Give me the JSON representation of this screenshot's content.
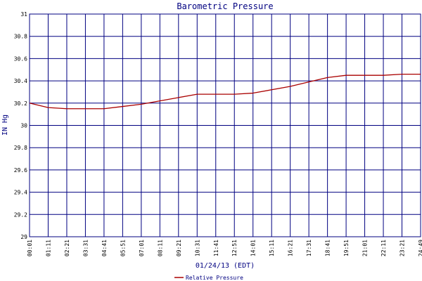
{
  "colors": {
    "grid": "#000080",
    "series": "#aa0000",
    "text": "#000080",
    "background": "#ffffff"
  },
  "chart_data": {
    "type": "line",
    "title": "Barometric Pressure",
    "xlabel": "01/24/13 (EDT)",
    "ylabel": "IN Hg",
    "ylim": [
      29,
      31
    ],
    "yticks": [
      29,
      29.2,
      29.4,
      29.6,
      29.8,
      30,
      30.2,
      30.4,
      30.6,
      30.8,
      31
    ],
    "ytick_labels": [
      "29",
      "29.2",
      "29.4",
      "29.6",
      "29.8",
      "30",
      "30.2",
      "30.4",
      "30.6",
      "30.8",
      "31"
    ],
    "xticks": [
      "00:01",
      "01:11",
      "02:21",
      "03:31",
      "04:41",
      "05:51",
      "07:01",
      "08:11",
      "09:21",
      "10:31",
      "11:41",
      "12:51",
      "14:01",
      "15:11",
      "16:21",
      "17:31",
      "18:41",
      "19:51",
      "21:01",
      "22:11",
      "23:21",
      "24:49"
    ],
    "grid": true,
    "legend_position": "bottom-center",
    "series": [
      {
        "name": "Relative Pressure",
        "values": [
          30.2,
          30.16,
          30.15,
          30.15,
          30.15,
          30.17,
          30.19,
          30.22,
          30.25,
          30.28,
          30.28,
          30.28,
          30.29,
          30.32,
          30.35,
          30.39,
          30.43,
          30.45,
          30.45,
          30.45,
          30.46,
          30.46
        ]
      }
    ]
  }
}
